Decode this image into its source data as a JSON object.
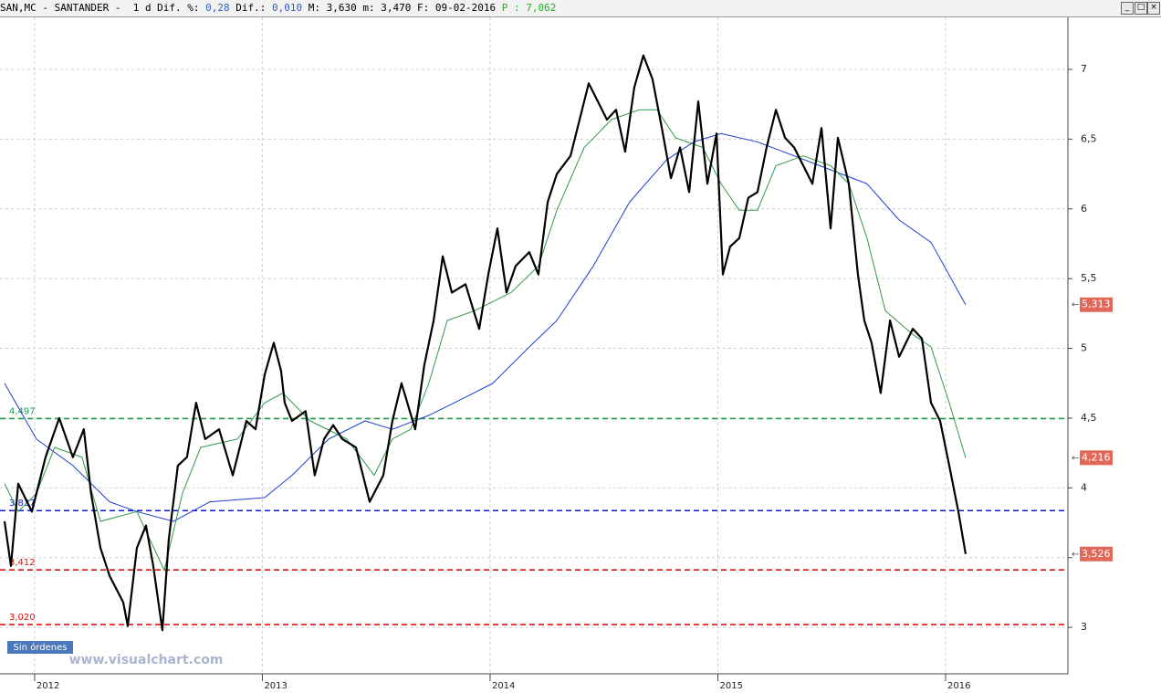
{
  "chart_data": {
    "type": "line",
    "header": {
      "head": "SAN,MC - SANTANDER -  1 d Dif. %:",
      "pct": "0,28",
      "dif_label": "Dif.:",
      "dif": "0,010",
      "rest": "M: 3,630 m: 3,470 F: 09-02-2016",
      "p_label": "P :",
      "p": "7,062"
    },
    "badge": "Sin órdenes",
    "watermark": "www.visualchart.com",
    "xlim": [
      2011.848,
      2016.537
    ],
    "xticks": [
      2012,
      2013,
      2014,
      2015,
      2016
    ],
    "ylim": [
      2.667,
      7.373
    ],
    "yticks": [
      {
        "value": 3,
        "label": "3"
      },
      {
        "value": 3.5,
        "label": "3,5"
      },
      {
        "value": 4,
        "label": "4"
      },
      {
        "value": 4.5,
        "label": "4,5"
      },
      {
        "value": 5,
        "label": "5"
      },
      {
        "value": 5.5,
        "label": "5,5"
      },
      {
        "value": 6,
        "label": "6"
      },
      {
        "value": 6.5,
        "label": "6,5"
      },
      {
        "value": 7,
        "label": "7"
      }
    ],
    "grid": true,
    "levels": [
      {
        "value": 4.497,
        "label": "4,497",
        "color": "#1e9a4e"
      },
      {
        "value": 3.837,
        "label": "3,837",
        "color": "#0a14c8"
      },
      {
        "value": 3.412,
        "label": "3,412",
        "color": "#e01010"
      },
      {
        "value": 3.02,
        "label": "3,020",
        "color": "#e01010"
      }
    ],
    "tags": [
      {
        "value": 5.313,
        "label": "5,313"
      },
      {
        "value": 4.216,
        "label": "4,216"
      },
      {
        "value": 3.526,
        "label": "3,526"
      }
    ],
    "series": [
      {
        "color": "#1c3fd0",
        "width": 1,
        "x": [
          2011.868,
          2012.008,
          2012.168,
          2012.329,
          2012.449,
          2012.609,
          2012.77,
          2013.01,
          2013.13,
          2013.291,
          2013.451,
          2013.571,
          2013.731,
          2013.892,
          2014.012,
          2014.172,
          2014.293,
          2014.453,
          2014.613,
          2014.774,
          2014.894,
          2015.014,
          2015.174,
          2015.335,
          2015.495,
          2015.655,
          2015.796,
          2015.936,
          2016.088
        ],
        "values": [
          4.75,
          4.35,
          4.16,
          3.9,
          3.83,
          3.76,
          3.9,
          3.93,
          4.09,
          4.35,
          4.48,
          4.42,
          4.52,
          4.65,
          4.75,
          5.01,
          5.2,
          5.59,
          6.05,
          6.35,
          6.48,
          6.54,
          6.48,
          6.38,
          6.28,
          6.18,
          5.92,
          5.76,
          5.313
        ]
      },
      {
        "color": "#2e9a4a",
        "width": 1,
        "x": [
          2011.868,
          2011.928,
          2012.008,
          2012.088,
          2012.208,
          2012.289,
          2012.449,
          2012.569,
          2012.649,
          2012.729,
          2012.89,
          2013.01,
          2013.09,
          2013.21,
          2013.371,
          2013.491,
          2013.571,
          2013.651,
          2013.731,
          2013.812,
          2013.932,
          2014.092,
          2014.212,
          2014.293,
          2014.413,
          2014.533,
          2014.653,
          2014.733,
          2014.814,
          2014.934,
          2015.014,
          2015.094,
          2015.174,
          2015.255,
          2015.375,
          2015.495,
          2015.575,
          2015.655,
          2015.735,
          2015.856,
          2015.936,
          2016.016,
          2016.088
        ],
        "values": [
          4.03,
          3.83,
          3.96,
          4.29,
          4.22,
          3.76,
          3.83,
          3.41,
          3.96,
          4.29,
          4.35,
          4.61,
          4.68,
          4.48,
          4.35,
          4.09,
          4.35,
          4.42,
          4.75,
          5.2,
          5.27,
          5.4,
          5.59,
          5.99,
          6.44,
          6.64,
          6.71,
          6.71,
          6.51,
          6.44,
          6.18,
          5.99,
          5.99,
          6.31,
          6.38,
          6.31,
          6.18,
          5.79,
          5.27,
          5.1,
          5.01,
          4.61,
          4.216
        ]
      },
      {
        "color": "#000000",
        "width": 2.2,
        "x": [
          2011.868,
          2011.896,
          2011.928,
          2011.988,
          2012.048,
          2012.108,
          2012.168,
          2012.216,
          2012.248,
          2012.289,
          2012.329,
          2012.389,
          2012.409,
          2012.449,
          2012.489,
          2012.521,
          2012.561,
          2012.589,
          2012.629,
          2012.669,
          2012.709,
          2012.749,
          2012.81,
          2012.87,
          2012.93,
          2012.97,
          2013.01,
          2013.05,
          2013.082,
          2013.098,
          2013.13,
          2013.19,
          2013.23,
          2013.271,
          2013.311,
          2013.351,
          2013.411,
          2013.471,
          2013.531,
          2013.571,
          2013.611,
          2013.671,
          2013.711,
          2013.752,
          2013.792,
          2013.832,
          2013.892,
          2013.952,
          2013.992,
          2014.032,
          2014.072,
          2014.112,
          2014.172,
          2014.212,
          2014.253,
          2014.293,
          2014.353,
          2014.393,
          2014.433,
          2014.473,
          2014.513,
          2014.553,
          2014.593,
          2014.633,
          2014.673,
          2014.713,
          2014.754,
          2014.794,
          2014.834,
          2014.874,
          2014.914,
          2014.954,
          2014.994,
          2015.022,
          2015.054,
          2015.094,
          2015.134,
          2015.174,
          2015.214,
          2015.255,
          2015.295,
          2015.335,
          2015.375,
          2015.415,
          2015.455,
          2015.495,
          2015.527,
          2015.575,
          2015.615,
          2015.643,
          2015.675,
          2015.715,
          2015.756,
          2015.796,
          2015.856,
          2015.896,
          2015.936,
          2015.976,
          2016.016,
          2016.056,
          2016.088
        ],
        "values": [
          3.76,
          3.44,
          4.03,
          3.83,
          4.22,
          4.5,
          4.22,
          4.42,
          3.96,
          3.57,
          3.37,
          3.18,
          3.01,
          3.57,
          3.73,
          3.44,
          2.98,
          3.63,
          4.16,
          4.22,
          4.61,
          4.35,
          4.42,
          4.09,
          4.48,
          4.42,
          4.81,
          5.04,
          4.84,
          4.61,
          4.48,
          4.55,
          4.09,
          4.35,
          4.45,
          4.35,
          4.29,
          3.9,
          4.09,
          4.48,
          4.75,
          4.42,
          4.88,
          5.2,
          5.66,
          5.4,
          5.46,
          5.14,
          5.53,
          5.86,
          5.4,
          5.59,
          5.69,
          5.53,
          6.05,
          6.25,
          6.38,
          6.64,
          6.9,
          6.77,
          6.64,
          6.71,
          6.41,
          6.87,
          7.1,
          6.93,
          6.58,
          6.22,
          6.44,
          6.12,
          6.77,
          6.18,
          6.54,
          5.53,
          5.73,
          5.79,
          6.08,
          6.12,
          6.44,
          6.71,
          6.51,
          6.44,
          6.31,
          6.18,
          6.58,
          5.86,
          6.51,
          6.18,
          5.53,
          5.2,
          5.04,
          4.68,
          5.2,
          4.94,
          5.14,
          5.07,
          4.61,
          4.48,
          4.16,
          3.83,
          3.526
        ]
      }
    ]
  }
}
